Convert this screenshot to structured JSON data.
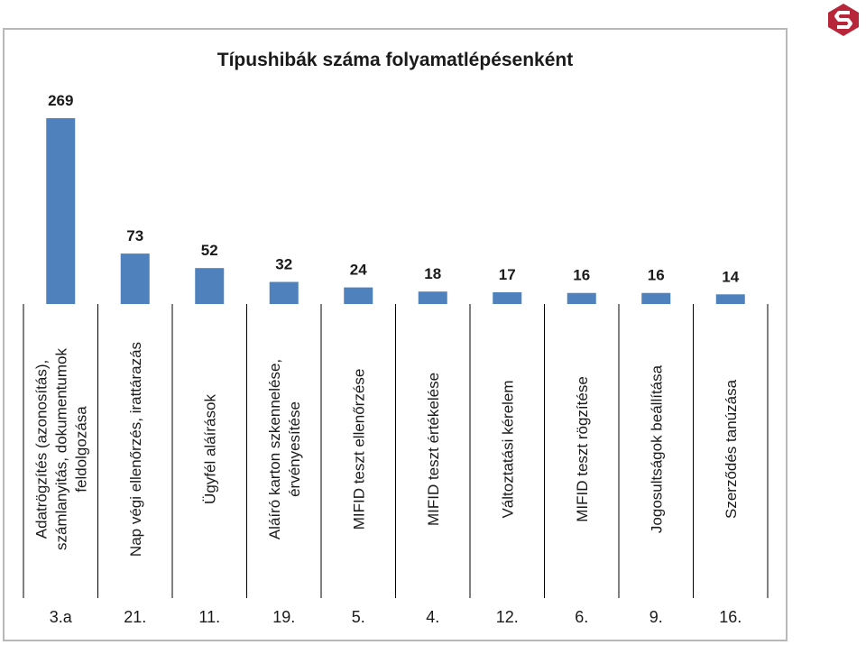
{
  "colors": {
    "bar": "#4f81bd",
    "logo": "#b8263a"
  },
  "logo_icon": "logo-s-shield",
  "chart_data": {
    "type": "bar",
    "title": "Típushibák száma folyamatlépésenként",
    "categories": [
      [
        "Adatrögzítés (azonosítás),",
        "számlanyitás, dokumentumok",
        "feldolgozása"
      ],
      [
        "Nap végi ellenőrzés, irattárazás"
      ],
      [
        "Ügyfél aláírások"
      ],
      [
        "Aláíró karton szkennelése,",
        "érvényesítése"
      ],
      [
        "MIFID teszt ellenőrzése"
      ],
      [
        "MIFID teszt értékelése"
      ],
      [
        "Változtatási kérelem"
      ],
      [
        "MIFID teszt rögzítése"
      ],
      [
        "Jogosultságok beállítása"
      ],
      [
        "Szerződés tanúzása"
      ]
    ],
    "codes": [
      "3.a",
      "21.",
      "11.",
      "19.",
      "5.",
      "4.",
      "12.",
      "6.",
      "9.",
      "16."
    ],
    "values": [
      269,
      73,
      52,
      32,
      24,
      18,
      17,
      16,
      16,
      14
    ],
    "value_labels": [
      "269",
      "73",
      "52",
      "32",
      "24",
      "18",
      "17",
      "16",
      "16",
      "14"
    ],
    "ylim": [
      0,
      269
    ],
    "grid": false,
    "legend": "none"
  }
}
